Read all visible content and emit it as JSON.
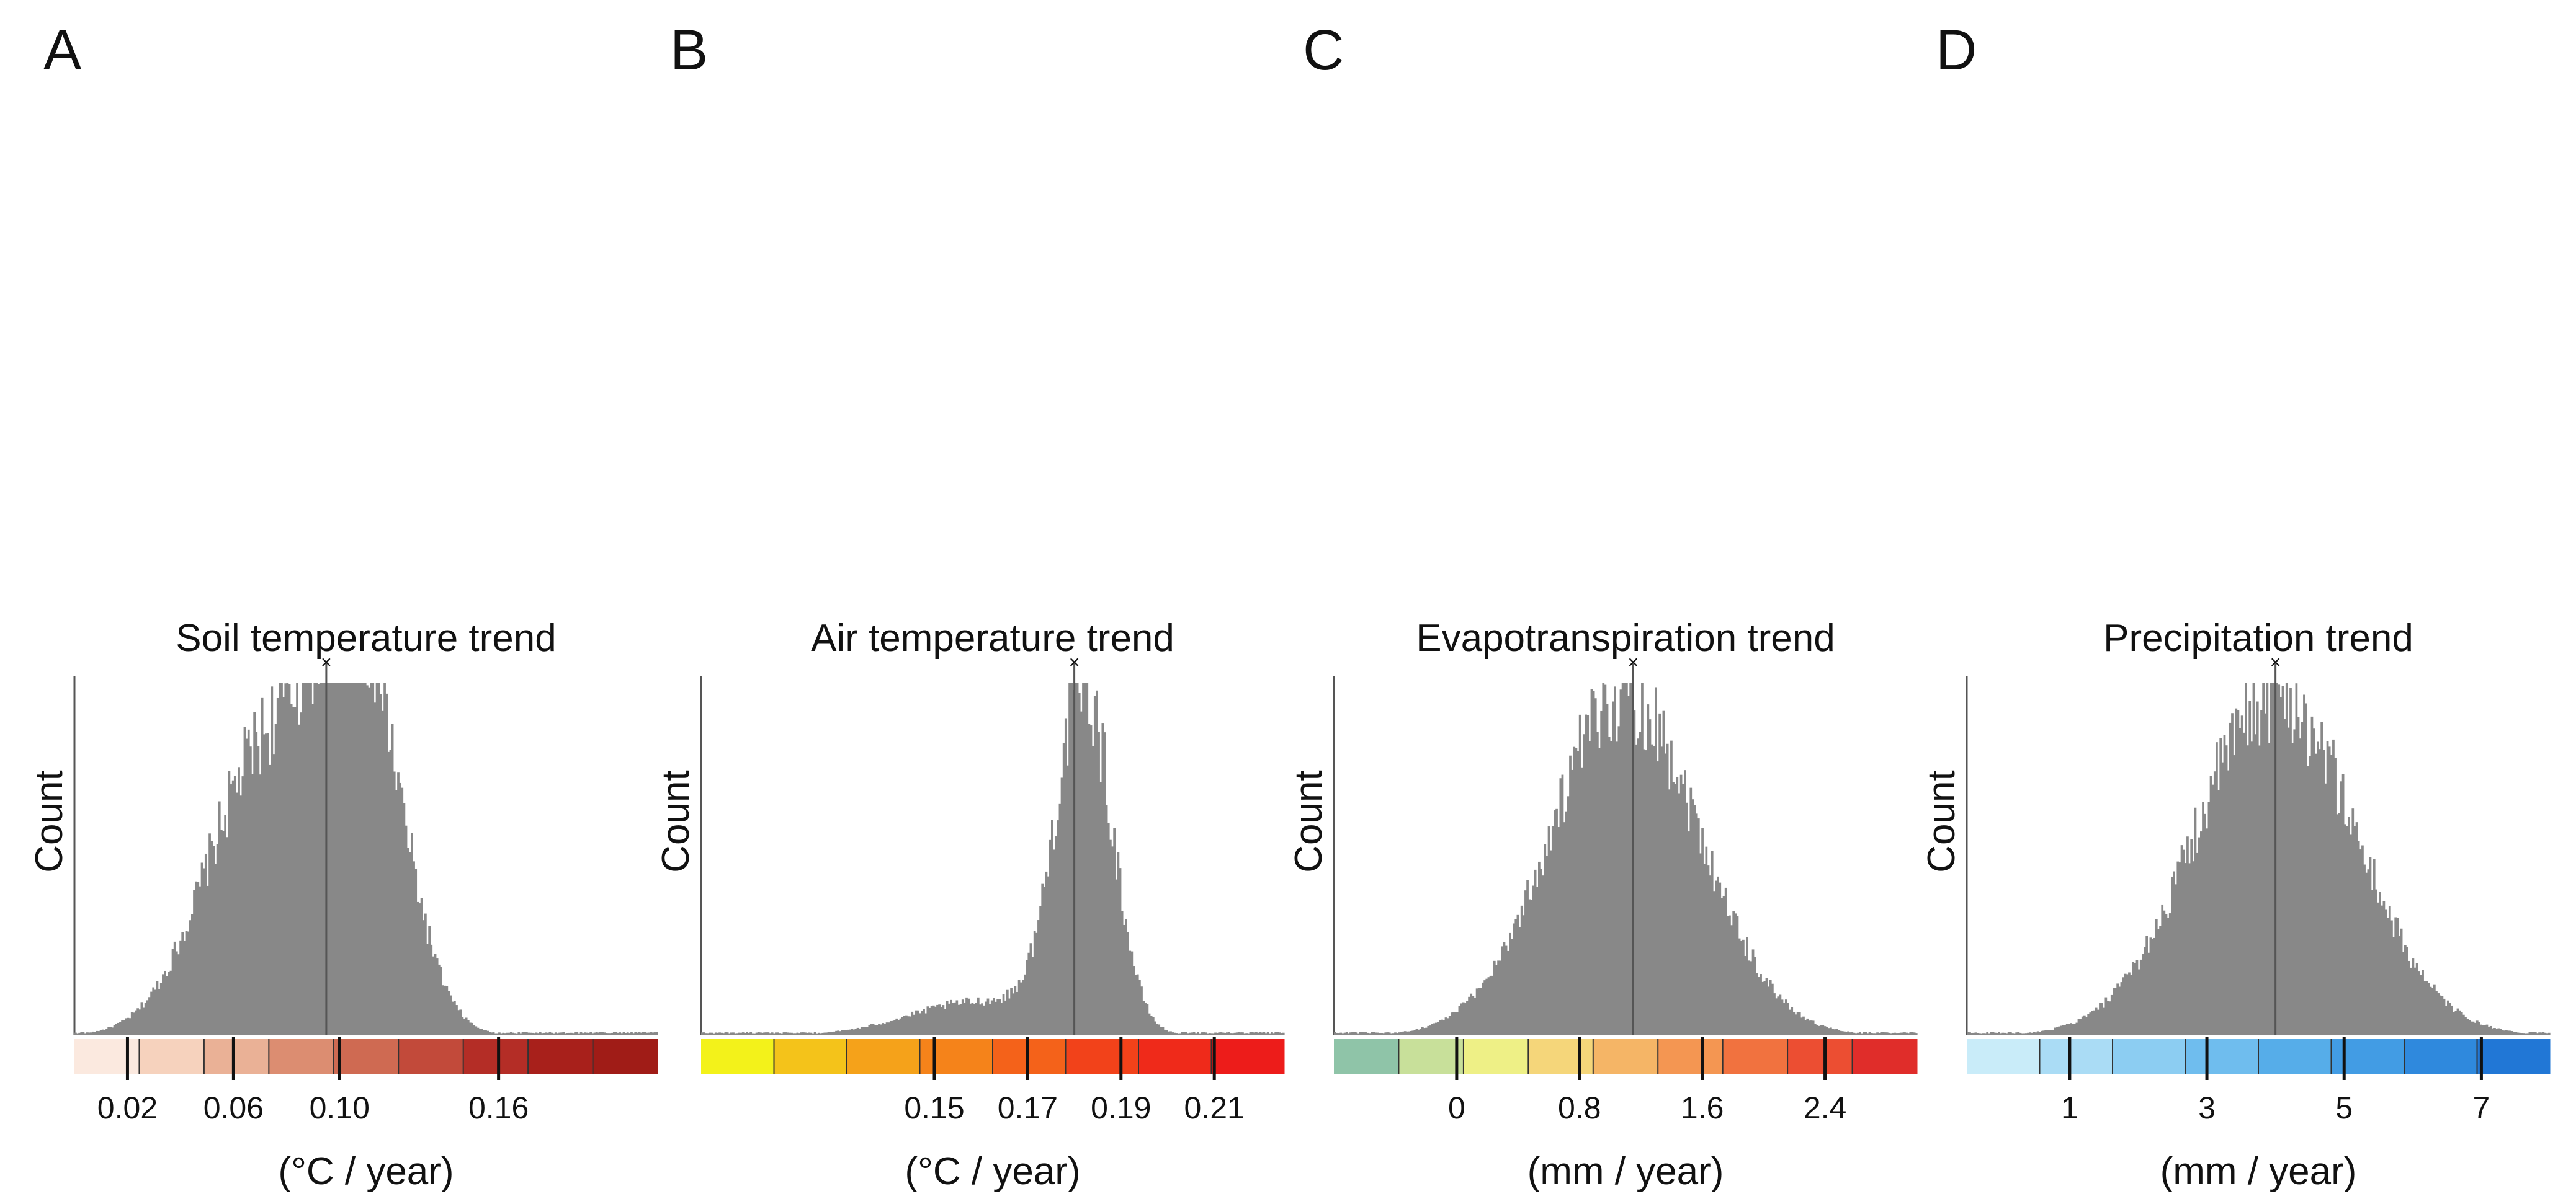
{
  "panels": [
    {
      "letter": "A",
      "title": "Soil temperature trend",
      "ylabel": "Count",
      "xlabel": "(°C / year)",
      "map_colors": {
        "light": "#f7dccb",
        "mid": "#d98369",
        "dark": "#b0231c"
      },
      "colorbar": [
        "#fbe9df",
        "#f6d2bd",
        "#eab196",
        "#dc8d71",
        "#cf6a52",
        "#c24a3a",
        "#b42d26",
        "#a8201b",
        "#a01c17"
      ],
      "colorbar_ticks": [
        "0.02",
        "0.06",
        "0.10",
        "0.16"
      ],
      "mean_marker": "×"
    },
    {
      "letter": "B",
      "title": "Air temperature trend",
      "ylabel": "Count",
      "xlabel": "(°C / year)",
      "map_colors": {
        "light": "#f2e11b",
        "mid": "#f39a1a",
        "dark": "#e63a12"
      },
      "colorbar": [
        "#f3f21a",
        "#f4c31a",
        "#f5a21a",
        "#f5831a",
        "#f4621a",
        "#f2421a",
        "#ef2a1a",
        "#ed1c1a"
      ],
      "colorbar_ticks": [
        "0.15",
        "0.17",
        "0.19",
        "0.21"
      ],
      "mean_marker": "×"
    },
    {
      "letter": "C",
      "title": "Evapotranspiration  trend",
      "ylabel": "Count",
      "xlabel": "(mm / year)",
      "map_colors": {
        "light": "#9cc8a8",
        "mid": "#f2e477",
        "dark": "#eb6a3a"
      },
      "colorbar": [
        "#8fc4a8",
        "#c8e09a",
        "#eef086",
        "#f5d67a",
        "#f5b566",
        "#f49652",
        "#f1723f",
        "#ec4e32",
        "#e02d2a"
      ],
      "colorbar_ticks": [
        "0",
        "0.8",
        "1.6",
        "2.4"
      ],
      "mean_marker": "×"
    },
    {
      "letter": "D",
      "title": "Precipitation  trend",
      "ylabel": "Count",
      "xlabel": "(mm / year)",
      "map_colors": {
        "light": "#b7e2f6",
        "mid": "#5aacea",
        "dark": "#1f6fd6"
      },
      "colorbar": [
        "#c9ecf9",
        "#aadcf5",
        "#8ccdf2",
        "#6fbdee",
        "#56ade9",
        "#429ce4",
        "#2f89dd",
        "#2177d6"
      ],
      "colorbar_ticks": [
        "1",
        "3",
        "5",
        "7"
      ],
      "mean_marker": "×"
    }
  ],
  "chart_data": [
    {
      "type": "bar",
      "title": "Soil temperature trend",
      "xlabel": "(°C / year)",
      "ylabel": "Count",
      "xlim": [
        0,
        0.22
      ],
      "xticks": [
        0.02,
        0.06,
        0.1,
        0.16
      ],
      "distribution": {
        "shape": "bimodal",
        "peaks": [
          {
            "x": 0.072,
            "relative_height": 0.82
          },
          {
            "x": 0.108,
            "relative_height": 1.0
          }
        ],
        "spread": [
          0.022,
          0.016
        ]
      },
      "mean": 0.095
    },
    {
      "type": "bar",
      "title": "Air temperature trend",
      "xlabel": "(°C / year)",
      "ylabel": "Count",
      "xlim": [
        0.1,
        0.225
      ],
      "xticks": [
        0.15,
        0.17,
        0.19,
        0.21
      ],
      "distribution": {
        "shape": "left-skewed",
        "peaks": [
          {
            "x": 0.182,
            "relative_height": 1.0
          }
        ],
        "spread": [
          0.006
        ],
        "shoulder": {
          "x": 0.16,
          "relative_height": 0.1
        }
      },
      "mean": 0.18
    },
    {
      "type": "bar",
      "title": "Evapotranspiration  trend",
      "xlabel": "(mm / year)",
      "ylabel": "Count",
      "xlim": [
        -0.8,
        3.0
      ],
      "xticks": [
        0,
        0.8,
        1.6,
        2.4
      ],
      "distribution": {
        "shape": "unimodal",
        "peaks": [
          {
            "x": 1.1,
            "relative_height": 1.0
          }
        ],
        "spread": [
          0.48
        ]
      },
      "mean": 1.15
    },
    {
      "type": "bar",
      "title": "Precipitation  trend",
      "xlabel": "(mm / year)",
      "ylabel": "Count",
      "xlim": [
        -0.5,
        8.0
      ],
      "xticks": [
        1,
        3,
        5,
        7
      ],
      "distribution": {
        "shape": "unimodal",
        "peaks": [
          {
            "x": 4.0,
            "relative_height": 1.0
          }
        ],
        "spread": [
          1.15
        ]
      },
      "mean": 4.0
    }
  ]
}
